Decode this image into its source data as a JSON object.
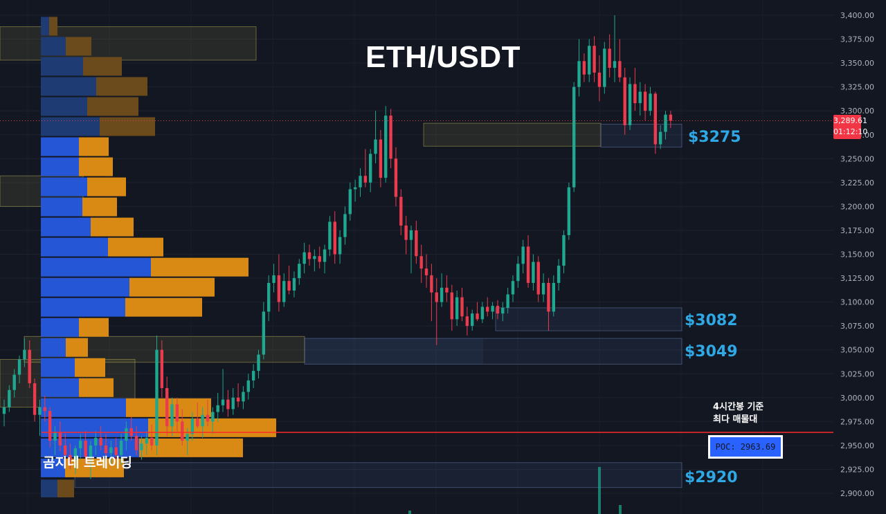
{
  "chart_data": {
    "type": "candlestick",
    "title": "ETH/USDT",
    "watermark": "곰지네 트레이딩",
    "y_axis": {
      "ticks": [
        2900,
        2925,
        2950,
        2975,
        3000,
        3025,
        3050,
        3075,
        3100,
        3125,
        3150,
        3175,
        3200,
        3225,
        3250,
        3275,
        3300,
        3325,
        3350,
        3375,
        3400
      ],
      "tick_labels": [
        "2,900.00",
        "2,925.00",
        "2,950.00",
        "2,975.00",
        "3,000.00",
        "3,025.00",
        "3,050.00",
        "3,075.00",
        "3,100.00",
        "3,125.00",
        "3,150.00",
        "3,175.00",
        "3,200.00",
        "3,225.00",
        "3,250.00",
        "3,275.00",
        "3,300.00",
        "3,325.00",
        "3,350.00",
        "3,375.00",
        "3,400.00"
      ],
      "position": "right",
      "ylim": [
        2879,
        3412
      ]
    },
    "current_price": {
      "value": 3289.61,
      "label": "3,289.61",
      "countdown": "01:12:10"
    },
    "poc": {
      "value": 2963.69,
      "label": "POC: 2963.69",
      "note_line1": "4시간봉 기준",
      "note_line2": "최다 매물대"
    },
    "levels": [
      {
        "label": "$3275",
        "top": 3286,
        "bottom": 3262
      },
      {
        "label": "$3082",
        "top": 3094,
        "bottom": 3070
      },
      {
        "label": "$3049",
        "top": 3062,
        "bottom": 3035
      },
      {
        "label": "$2920",
        "top": 2932,
        "bottom": 2906
      }
    ],
    "volume_profile": [
      {
        "low": 2895,
        "high": 2915,
        "buy": 0.24,
        "sell": 0.24
      },
      {
        "low": 2916,
        "high": 2937,
        "buy": 0.35,
        "sell": 0.85
      },
      {
        "low": 2937,
        "high": 2958,
        "buy": 1.42,
        "sell": 1.5
      },
      {
        "low": 2958,
        "high": 2979,
        "buy": 1.55,
        "sell": 1.85
      },
      {
        "low": 2979,
        "high": 3000,
        "buy": 1.23,
        "sell": 1.23
      },
      {
        "low": 3000,
        "high": 3021,
        "buy": 0.55,
        "sell": 0.5
      },
      {
        "low": 3021,
        "high": 3042,
        "buy": 0.49,
        "sell": 0.44
      },
      {
        "low": 3042,
        "high": 3063,
        "buy": 0.36,
        "sell": 0.32
      },
      {
        "low": 3063,
        "high": 3084,
        "buy": 0.55,
        "sell": 0.43
      },
      {
        "low": 3084,
        "high": 3105,
        "buy": 1.22,
        "sell": 1.11
      },
      {
        "low": 3105,
        "high": 3126,
        "buy": 1.28,
        "sell": 1.23
      },
      {
        "low": 3126,
        "high": 3147,
        "buy": 1.59,
        "sell": 1.41
      },
      {
        "low": 3147,
        "high": 3168,
        "buy": 0.97,
        "sell": 0.8
      },
      {
        "low": 3168,
        "high": 3189,
        "buy": 0.72,
        "sell": 0.62
      },
      {
        "low": 3189,
        "high": 3210,
        "buy": 0.6,
        "sell": 0.5
      },
      {
        "low": 3210,
        "high": 3231,
        "buy": 0.67,
        "sell": 0.56
      },
      {
        "low": 3231,
        "high": 3252,
        "buy": 0.55,
        "sell": 0.49
      },
      {
        "low": 3252,
        "high": 3273,
        "buy": 0.55,
        "sell": 0.43
      },
      {
        "low": 3273,
        "high": 3294,
        "buy": 0.85,
        "sell": 0.8
      },
      {
        "low": 3294,
        "high": 3315,
        "buy": 0.67,
        "sell": 0.74
      },
      {
        "low": 3315,
        "high": 3336,
        "buy": 0.8,
        "sell": 0.74
      },
      {
        "low": 3336,
        "high": 3357,
        "buy": 0.61,
        "sell": 0.56
      },
      {
        "low": 3357,
        "high": 3378,
        "buy": 0.36,
        "sell": 0.37
      },
      {
        "low": 3378,
        "high": 3399,
        "buy": 0.12,
        "sell": 0.12
      }
    ],
    "candles": [
      [
        2983,
        2998,
        2970,
        2990
      ],
      [
        2990,
        3013,
        2985,
        3008
      ],
      [
        3008,
        3030,
        3000,
        3024
      ],
      [
        3024,
        3044,
        3015,
        3040
      ],
      [
        3040,
        3062,
        3032,
        3050
      ],
      [
        3050,
        3060,
        3010,
        3015
      ],
      [
        3015,
        3020,
        2975,
        2982
      ],
      [
        2982,
        2998,
        2960,
        2990
      ],
      [
        2990,
        3002,
        2975,
        2986
      ],
      [
        2986,
        2990,
        2948,
        2955
      ],
      [
        2955,
        2970,
        2940,
        2964
      ],
      [
        2964,
        2975,
        2944,
        2950
      ],
      [
        2950,
        2962,
        2930,
        2940
      ],
      [
        2940,
        2952,
        2925,
        2935
      ],
      [
        2935,
        2950,
        2920,
        2947
      ],
      [
        2947,
        2962,
        2935,
        2955
      ],
      [
        2955,
        2965,
        2930,
        2938
      ],
      [
        2938,
        2955,
        2915,
        2950
      ],
      [
        2950,
        2965,
        2940,
        2958
      ],
      [
        2958,
        2970,
        2945,
        2950
      ],
      [
        2950,
        2962,
        2935,
        2942
      ],
      [
        2942,
        2955,
        2930,
        2948
      ],
      [
        2948,
        2958,
        2935,
        2940
      ],
      [
        2940,
        2962,
        2930,
        2955
      ],
      [
        2955,
        2975,
        2945,
        2968
      ],
      [
        2968,
        2980,
        2955,
        2960
      ],
      [
        2960,
        2970,
        2940,
        2945
      ],
      [
        2945,
        2960,
        2935,
        2952
      ],
      [
        2952,
        2965,
        2940,
        2958
      ],
      [
        2958,
        2972,
        2945,
        2950
      ],
      [
        2950,
        3065,
        2940,
        3050
      ],
      [
        3050,
        3060,
        3000,
        3010
      ],
      [
        3010,
        3022,
        2960,
        2970
      ],
      [
        2970,
        3000,
        2960,
        2993
      ],
      [
        2993,
        3000,
        2965,
        2975
      ],
      [
        2975,
        2988,
        2950,
        2955
      ],
      [
        2955,
        2968,
        2940,
        2962
      ],
      [
        2962,
        2985,
        2955,
        2978
      ],
      [
        2978,
        2995,
        2968,
        2970
      ],
      [
        2970,
        2990,
        2958,
        2982
      ],
      [
        2982,
        2998,
        2970,
        2975
      ],
      [
        2975,
        2990,
        2962,
        2985
      ],
      [
        2985,
        3005,
        2975,
        2992
      ],
      [
        2992,
        3030,
        2985,
        2998
      ],
      [
        2998,
        3008,
        2980,
        2988
      ],
      [
        2988,
        3010,
        2982,
        3000
      ],
      [
        3000,
        3015,
        2990,
        2996
      ],
      [
        2996,
        3012,
        2988,
        3006
      ],
      [
        3006,
        3025,
        2998,
        3018
      ],
      [
        3018,
        3035,
        3010,
        3028
      ],
      [
        3028,
        3050,
        3020,
        3045
      ],
      [
        3045,
        3100,
        3040,
        3090
      ],
      [
        3090,
        3128,
        3080,
        3120
      ],
      [
        3120,
        3140,
        3110,
        3128
      ],
      [
        3128,
        3150,
        3090,
        3100
      ],
      [
        3100,
        3130,
        3095,
        3122
      ],
      [
        3122,
        3138,
        3108,
        3112
      ],
      [
        3112,
        3132,
        3105,
        3125
      ],
      [
        3125,
        3145,
        3118,
        3140
      ],
      [
        3140,
        3162,
        3130,
        3152
      ],
      [
        3152,
        3160,
        3138,
        3145
      ],
      [
        3145,
        3155,
        3132,
        3148
      ],
      [
        3148,
        3158,
        3135,
        3142
      ],
      [
        3142,
        3160,
        3130,
        3155
      ],
      [
        3155,
        3190,
        3148,
        3184
      ],
      [
        3184,
        3195,
        3140,
        3150
      ],
      [
        3150,
        3175,
        3140,
        3168
      ],
      [
        3168,
        3200,
        3160,
        3192
      ],
      [
        3192,
        3225,
        3185,
        3218
      ],
      [
        3218,
        3228,
        3205,
        3220
      ],
      [
        3220,
        3240,
        3210,
        3232
      ],
      [
        3232,
        3260,
        3220,
        3225
      ],
      [
        3225,
        3260,
        3215,
        3255
      ],
      [
        3255,
        3300,
        3245,
        3270
      ],
      [
        3270,
        3280,
        3220,
        3230
      ],
      [
        3230,
        3305,
        3225,
        3295
      ],
      [
        3295,
        3302,
        3240,
        3250
      ],
      [
        3250,
        3262,
        3200,
        3210
      ],
      [
        3210,
        3218,
        3170,
        3180
      ],
      [
        3180,
        3190,
        3150,
        3165
      ],
      [
        3165,
        3180,
        3130,
        3175
      ],
      [
        3175,
        3185,
        3140,
        3148
      ],
      [
        3148,
        3160,
        3120,
        3135
      ],
      [
        3135,
        3150,
        3115,
        3128
      ],
      [
        3128,
        3140,
        3080,
        3110
      ],
      [
        3110,
        3125,
        3055,
        3100
      ],
      [
        3100,
        3130,
        3095,
        3115
      ],
      [
        3115,
        3128,
        3100,
        3110
      ],
      [
        3110,
        3118,
        3070,
        3082
      ],
      [
        3082,
        3112,
        3075,
        3105
      ],
      [
        3105,
        3115,
        3080,
        3085
      ],
      [
        3085,
        3095,
        3065,
        3075
      ],
      [
        3075,
        3092,
        3070,
        3088
      ],
      [
        3088,
        3100,
        3080,
        3082
      ],
      [
        3082,
        3100,
        3078,
        3095
      ],
      [
        3095,
        3105,
        3085,
        3090
      ],
      [
        3090,
        3100,
        3082,
        3096
      ],
      [
        3096,
        3102,
        3082,
        3088
      ],
      [
        3088,
        3100,
        3080,
        3094
      ],
      [
        3094,
        3115,
        3088,
        3108
      ],
      [
        3108,
        3128,
        3100,
        3122
      ],
      [
        3122,
        3148,
        3115,
        3140
      ],
      [
        3140,
        3165,
        3130,
        3158
      ],
      [
        3158,
        3170,
        3115,
        3120
      ],
      [
        3120,
        3150,
        3112,
        3142
      ],
      [
        3142,
        3148,
        3100,
        3108
      ],
      [
        3108,
        3130,
        3100,
        3120
      ],
      [
        3120,
        3125,
        3070,
        3090
      ],
      [
        3090,
        3128,
        3085,
        3120
      ],
      [
        3120,
        3145,
        3112,
        3138
      ],
      [
        3138,
        3175,
        3130,
        3170
      ],
      [
        3170,
        3225,
        3165,
        3220
      ],
      [
        3220,
        3330,
        3215,
        3325
      ],
      [
        3325,
        3375,
        3315,
        3352
      ],
      [
        3352,
        3360,
        3330,
        3338
      ],
      [
        3338,
        3375,
        3330,
        3368
      ],
      [
        3368,
        3378,
        3330,
        3340
      ],
      [
        3340,
        3358,
        3310,
        3325
      ],
      [
        3325,
        3372,
        3318,
        3365
      ],
      [
        3365,
        3380,
        3335,
        3345
      ],
      [
        3345,
        3400,
        3330,
        3352
      ],
      [
        3352,
        3375,
        3330,
        3335
      ],
      [
        3335,
        3345,
        3275,
        3285
      ],
      [
        3285,
        3335,
        3280,
        3328
      ],
      [
        3328,
        3345,
        3300,
        3308
      ],
      [
        3308,
        3330,
        3295,
        3320
      ],
      [
        3320,
        3328,
        3290,
        3300
      ],
      [
        3300,
        3325,
        3295,
        3318
      ],
      [
        3318,
        3320,
        3255,
        3265
      ],
      [
        3265,
        3285,
        3260,
        3278
      ],
      [
        3278,
        3300,
        3270,
        3296
      ],
      [
        3296,
        3300,
        3282,
        3289.61
      ]
    ]
  }
}
